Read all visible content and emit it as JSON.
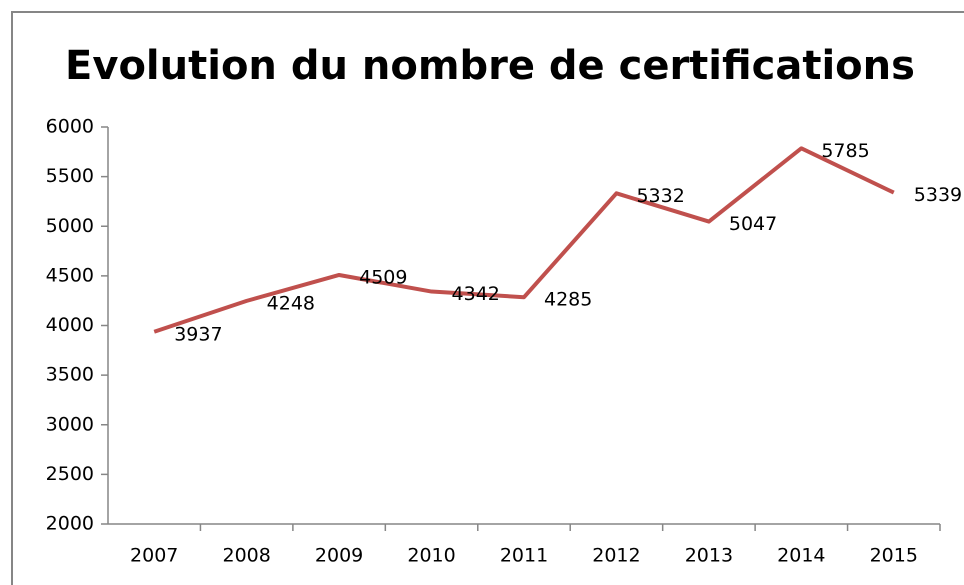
{
  "chart_data": {
    "type": "line",
    "title": "Evolution du nombre de certifications",
    "categories": [
      "2007",
      "2008",
      "2009",
      "2010",
      "2011",
      "2012",
      "2013",
      "2014",
      "2015"
    ],
    "series": [
      {
        "name": "Certifications",
        "color": "#c0504d",
        "values": [
          3937,
          4248,
          4509,
          4342,
          4285,
          5332,
          5047,
          5785,
          5339
        ]
      }
    ],
    "ylim": [
      2000,
      6000
    ],
    "yticks": [
      2000,
      2500,
      3000,
      3500,
      4000,
      4500,
      5000,
      5500,
      6000
    ],
    "grid": false
  }
}
